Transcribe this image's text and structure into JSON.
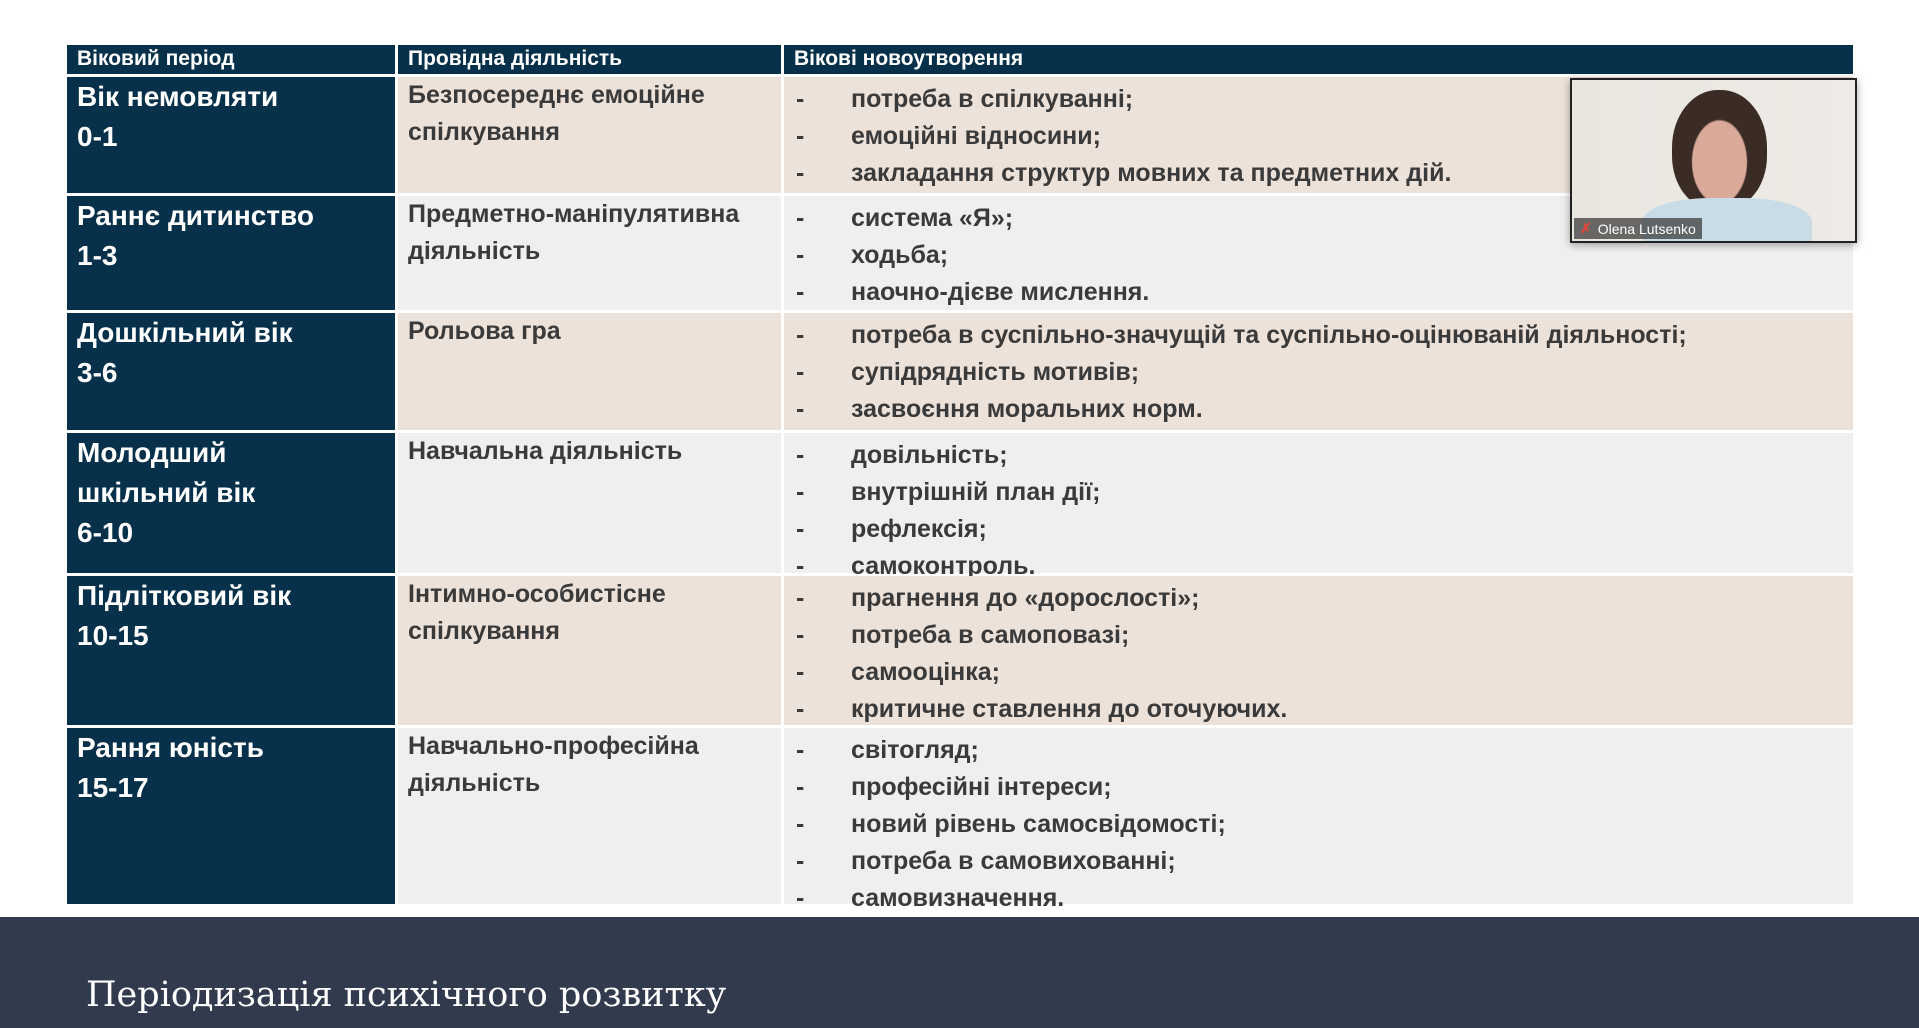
{
  "headers": [
    "Віковий період",
    "Провідна діяльність",
    "Вікові новоутворення"
  ],
  "rows": [
    {
      "period": [
        "Вік немовляти",
        "0-1"
      ],
      "activity": "Безпосереднє емоційне спілкування",
      "items": [
        "потреба в спілкуванні;",
        "емоційні відносини;",
        "закладання структур мовних та предметних дій."
      ]
    },
    {
      "period": [
        "Раннє дитинство",
        "1-3"
      ],
      "activity": "Предметно-маніпулятивна діяльність",
      "items": [
        "система «Я»;",
        "ходьба;",
        "наочно-дієве мислення."
      ]
    },
    {
      "period": [
        "Дошкільний вік",
        "3-6"
      ],
      "activity": "Рольова гра",
      "items": [
        "потреба в суспільно-значущій та суспільно-оцінюваній діяльності;",
        "супідрядність мотивів;",
        "засвоєння моральних норм."
      ]
    },
    {
      "period": [
        "Молодший",
        "шкільний вік",
        "6-10"
      ],
      "activity": "Навчальна діяльність",
      "items": [
        "довільність;",
        "внутрішній план дії;",
        "рефлексія;",
        "самоконтроль."
      ]
    },
    {
      "period": [
        "Підлітковий вік",
        "10-15"
      ],
      "activity": "Інтимно-особистісне спілкування",
      "items": [
        "прагнення до «дорослості»;",
        "потреба в самоповазі;",
        "самооцінка;",
        "критичне ставлення до оточуючих."
      ]
    },
    {
      "period": [
        "Рання юність",
        "15-17"
      ],
      "activity": "Навчально-професійна діяльність",
      "items": [
        "світогляд;",
        "професійні інтереси;",
        "новий рівень самосвідомості;",
        "потреба в самовихованні;",
        "самовизначення."
      ]
    }
  ],
  "bullet": "-",
  "slide_title": "Періодизація психічного розвитку",
  "video": {
    "participant_name": "Olena Lutsenko",
    "mic_icon": "muted-mic-icon"
  },
  "colors": {
    "header": "#07304a",
    "beige": "#ede2da",
    "gray": "#efefef",
    "footer": "#323a4d"
  }
}
